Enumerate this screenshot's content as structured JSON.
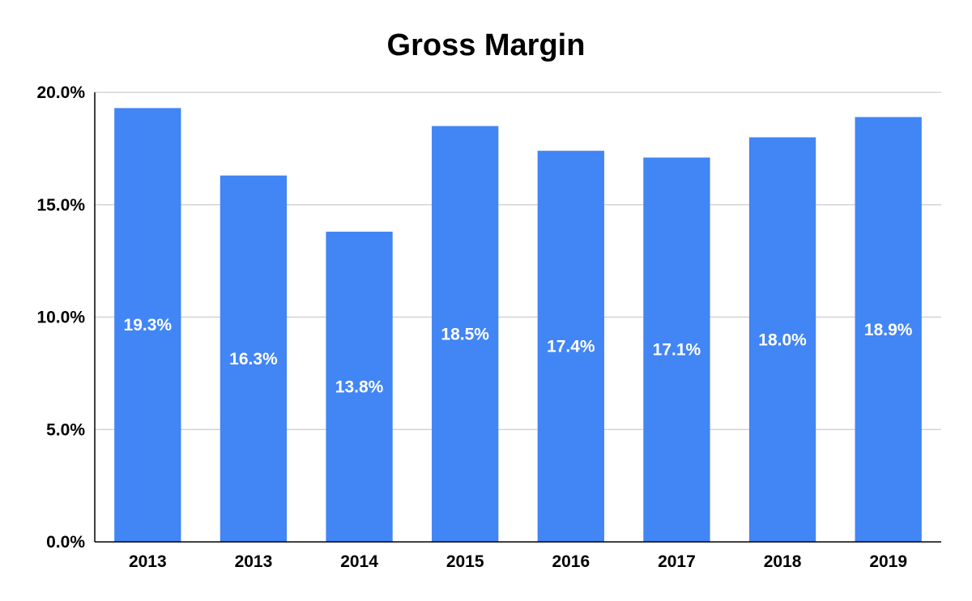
{
  "chart_data": {
    "type": "bar",
    "title": "Gross Margin",
    "xlabel": "",
    "ylabel": "",
    "categories": [
      "2013",
      "2013",
      "2014",
      "2015",
      "2016",
      "2017",
      "2018",
      "2019"
    ],
    "values": [
      19.3,
      16.3,
      13.8,
      18.5,
      17.4,
      17.1,
      18.0,
      18.9
    ],
    "value_labels": [
      "19.3%",
      "16.3%",
      "13.8%",
      "18.5%",
      "17.4%",
      "17.1%",
      "18.0%",
      "18.9%"
    ],
    "ylim": [
      0,
      20
    ],
    "yticks": [
      0,
      5,
      10,
      15,
      20
    ],
    "ytick_labels": [
      "0.0%",
      "5.0%",
      "10.0%",
      "15.0%",
      "20.0%"
    ],
    "grid": true,
    "legend": "none",
    "bar_color": "#4285F4",
    "label_color": "#ffffff",
    "grid_color": "#cccccc",
    "axis_color": "#000000"
  }
}
